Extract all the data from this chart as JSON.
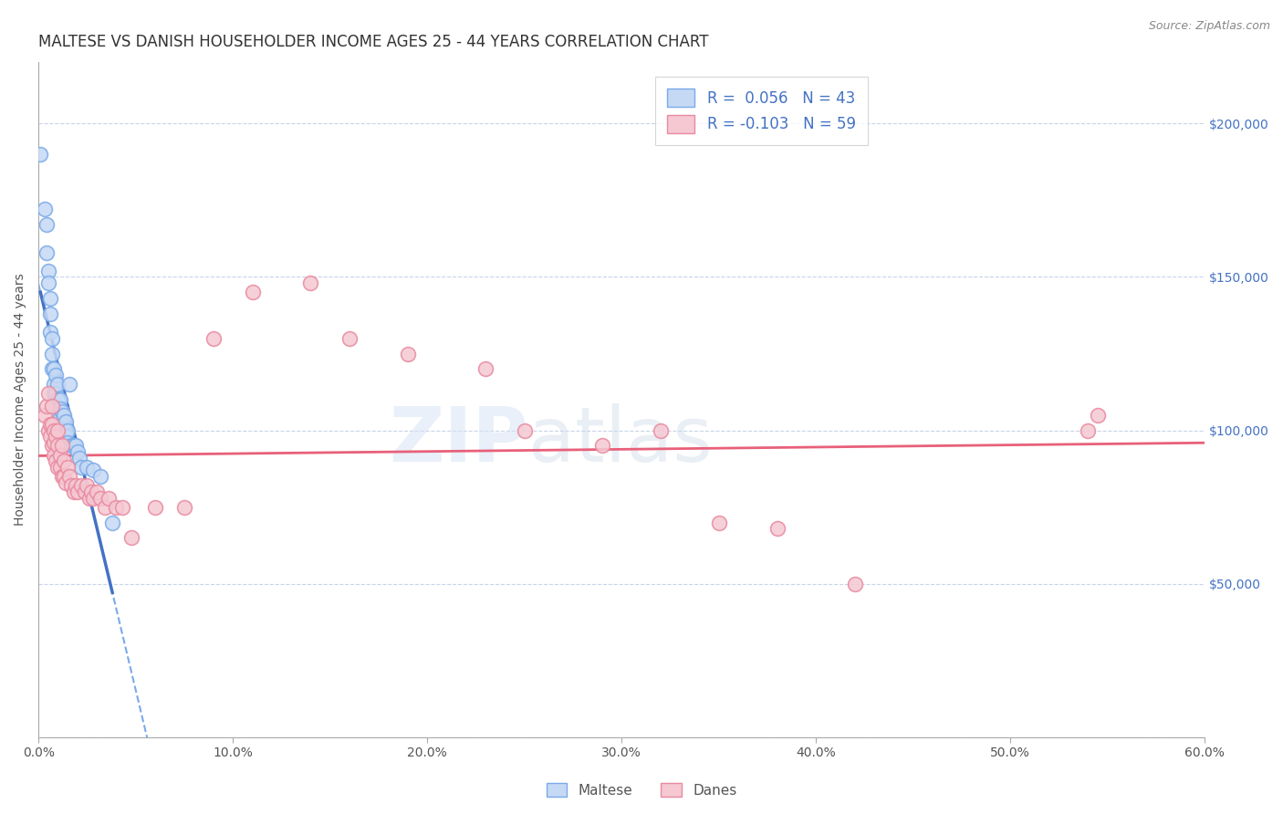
{
  "title": "MALTESE VS DANISH HOUSEHOLDER INCOME AGES 25 - 44 YEARS CORRELATION CHART",
  "source": "Source: ZipAtlas.com",
  "ylabel": "Householder Income Ages 25 - 44 years",
  "xlim": [
    0.0,
    0.6
  ],
  "ylim": [
    0,
    220000
  ],
  "xtick_labels": [
    "0.0%",
    "10.0%",
    "20.0%",
    "30.0%",
    "40.0%",
    "50.0%",
    "60.0%"
  ],
  "xtick_vals": [
    0.0,
    0.1,
    0.2,
    0.3,
    0.4,
    0.5,
    0.6
  ],
  "ytick_vals": [
    0,
    50000,
    100000,
    150000,
    200000
  ],
  "ytick_labels_right": [
    "",
    "$50,000",
    "$100,000",
    "$150,000",
    "$200,000"
  ],
  "maltese_edge_color": "#7aaae8",
  "maltese_fill_color": "#c5d9f5",
  "danes_edge_color": "#e88aa0",
  "danes_fill_color": "#f5c8d2",
  "line_blue_solid": "#4472c4",
  "line_blue_dashed": "#7aaae8",
  "line_pink": "#e8607a",
  "legend_text_color": "#4472c4",
  "R_maltese": "0.056",
  "N_maltese": "43",
  "R_danes": "-0.103",
  "N_danes": "59",
  "maltese_x": [
    0.001,
    0.003,
    0.004,
    0.004,
    0.005,
    0.005,
    0.006,
    0.006,
    0.006,
    0.007,
    0.007,
    0.007,
    0.008,
    0.008,
    0.008,
    0.009,
    0.009,
    0.009,
    0.01,
    0.01,
    0.01,
    0.011,
    0.011,
    0.011,
    0.012,
    0.012,
    0.013,
    0.013,
    0.014,
    0.014,
    0.015,
    0.015,
    0.016,
    0.017,
    0.018,
    0.019,
    0.02,
    0.021,
    0.022,
    0.025,
    0.028,
    0.032,
    0.038
  ],
  "maltese_y": [
    190000,
    172000,
    167000,
    158000,
    152000,
    148000,
    143000,
    138000,
    132000,
    130000,
    125000,
    120000,
    120000,
    115000,
    112000,
    118000,
    112000,
    108000,
    115000,
    110000,
    106000,
    110000,
    107000,
    104000,
    106000,
    102000,
    105000,
    100000,
    103000,
    98000,
    100000,
    96000,
    115000,
    95000,
    95000,
    95000,
    93000,
    91000,
    88000,
    88000,
    87000,
    85000,
    70000
  ],
  "danes_x": [
    0.003,
    0.004,
    0.005,
    0.005,
    0.006,
    0.006,
    0.007,
    0.007,
    0.007,
    0.008,
    0.008,
    0.008,
    0.009,
    0.009,
    0.01,
    0.01,
    0.01,
    0.011,
    0.011,
    0.012,
    0.012,
    0.013,
    0.013,
    0.014,
    0.015,
    0.016,
    0.017,
    0.018,
    0.019,
    0.02,
    0.022,
    0.024,
    0.025,
    0.026,
    0.027,
    0.028,
    0.03,
    0.032,
    0.034,
    0.036,
    0.04,
    0.043,
    0.048,
    0.06,
    0.075,
    0.09,
    0.11,
    0.14,
    0.16,
    0.19,
    0.23,
    0.25,
    0.29,
    0.32,
    0.35,
    0.38,
    0.42,
    0.54,
    0.545
  ],
  "danes_y": [
    105000,
    108000,
    100000,
    112000,
    102000,
    98000,
    108000,
    102000,
    95000,
    100000,
    96000,
    92000,
    98000,
    90000,
    100000,
    95000,
    88000,
    92000,
    88000,
    95000,
    85000,
    90000,
    85000,
    83000,
    88000,
    85000,
    82000,
    80000,
    82000,
    80000,
    82000,
    80000,
    82000,
    78000,
    80000,
    78000,
    80000,
    78000,
    75000,
    78000,
    75000,
    75000,
    65000,
    75000,
    75000,
    130000,
    145000,
    148000,
    130000,
    125000,
    120000,
    100000,
    95000,
    100000,
    70000,
    68000,
    50000,
    100000,
    105000
  ],
  "watermark_zip": "ZIP",
  "watermark_atlas": "atlas",
  "background_color": "#ffffff",
  "grid_color": "#c8d4e8",
  "title_fontsize": 12,
  "axis_label_fontsize": 10,
  "tick_fontsize": 10,
  "legend_fontsize": 12,
  "source_fontsize": 9
}
